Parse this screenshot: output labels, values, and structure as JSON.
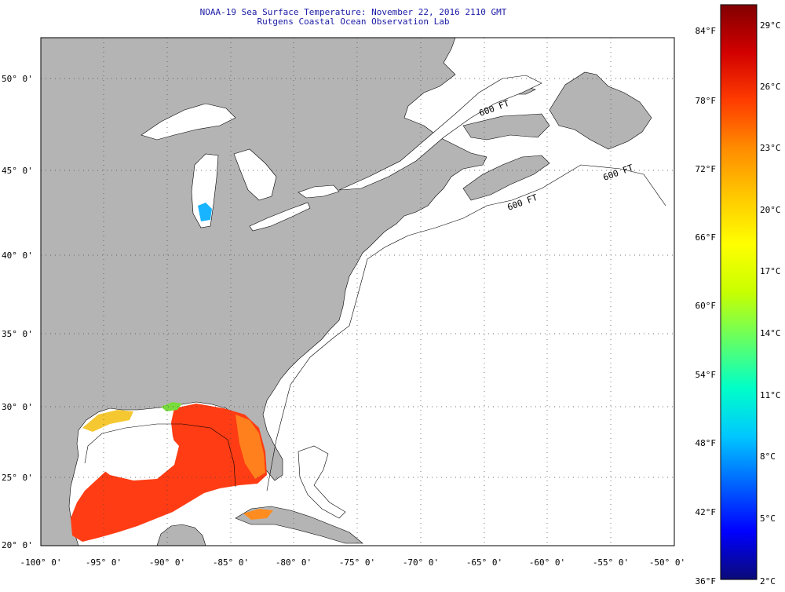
{
  "header": {
    "title": "NOAA-19 Sea Surface Temperature:  November 22, 2016 2110 GMT",
    "subtitle": "Rutgens Coastal Ocean Observation Lab"
  },
  "map": {
    "lat_labels": [
      "50° 0'",
      "45° 0'",
      "40° 0'",
      "35° 0'",
      "30° 0'",
      "25° 0'",
      "20° 0'"
    ],
    "lon_labels": [
      "-100° 0'",
      "-95° 0'",
      "-90° 0'",
      "-85° 0'",
      "-80° 0'",
      "-75° 0'",
      "-70° 0'",
      "-65° 0'",
      "-60° 0'",
      "-55° 0'",
      "-50° 0'"
    ],
    "isobath_labels": [
      "600 FT",
      "600 FT",
      "600 FT"
    ],
    "land_color": "#b4b4b4",
    "water_color": "#ffffff"
  },
  "colorbar": {
    "fahrenheit_labels": [
      "84°F",
      "78°F",
      "72°F",
      "66°F",
      "60°F",
      "54°F",
      "48°F",
      "42°F",
      "36°F"
    ],
    "celsius_labels": [
      "29°C",
      "26°C",
      "23°C",
      "20°C",
      "17°C",
      "14°C",
      "11°C",
      "8°C",
      "5°C",
      "2°C"
    ],
    "scale": [
      "#0a0a78",
      "#0000ff",
      "#0064ff",
      "#00c8ff",
      "#00ffc8",
      "#64ff64",
      "#c8ff00",
      "#ffff00",
      "#ffc800",
      "#ff8c00",
      "#ff3c00",
      "#d20000",
      "#820000"
    ]
  }
}
